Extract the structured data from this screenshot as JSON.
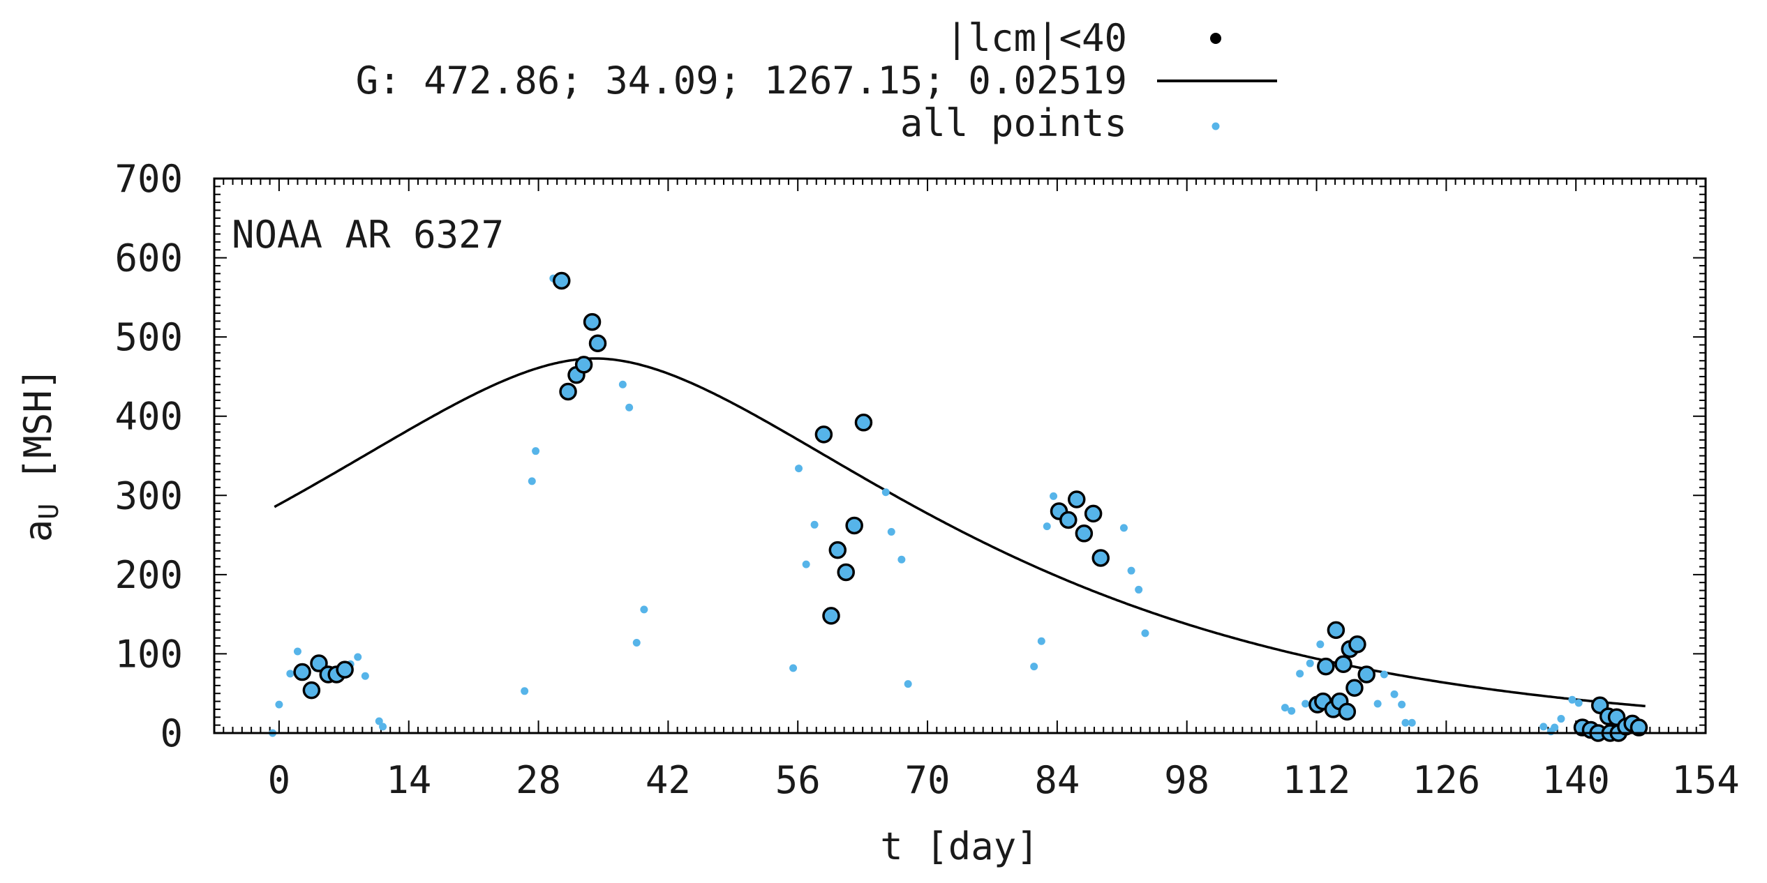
{
  "chart_data": {
    "type": "scatter",
    "annotation": "NOAA AR 6327",
    "xlabel": "t [day]",
    "ylabel": "a",
    "ylabel_sub": "U",
    "ylabel_unit": "[MSH]",
    "xlim": [
      -7,
      154
    ],
    "ylim": [
      0,
      700
    ],
    "xticks": [
      0,
      14,
      28,
      42,
      56,
      70,
      84,
      98,
      112,
      126,
      140,
      154
    ],
    "yticks": [
      0,
      100,
      200,
      300,
      400,
      500,
      600,
      700
    ],
    "grid": false,
    "legend_position": "top",
    "legend": [
      {
        "label": "|lcm|<40",
        "marker": "circle"
      },
      {
        "label": "G: 472.86; 34.09; 1267.15; 0.02519",
        "marker": "line"
      },
      {
        "label": "all points",
        "marker": "dot"
      }
    ],
    "colors": {
      "points": "#56b4e9",
      "outline": "#000000",
      "fit": "#000000"
    },
    "fit_curve": {
      "amplitude": 472.86,
      "t_peak": 34.09,
      "c1": 1267.15,
      "c2": 0.02519
    },
    "series_all": [
      [
        -0.7,
        0
      ],
      [
        0,
        36
      ],
      [
        1.2,
        75
      ],
      [
        2,
        103
      ],
      [
        4,
        82
      ],
      [
        7.7,
        87
      ],
      [
        8.5,
        96
      ],
      [
        9.3,
        72
      ],
      [
        10.8,
        15
      ],
      [
        11.2,
        8
      ],
      [
        26.5,
        53
      ],
      [
        27.3,
        318
      ],
      [
        27.7,
        356
      ],
      [
        29.6,
        574
      ],
      [
        37.1,
        440
      ],
      [
        37.8,
        411
      ],
      [
        38.6,
        114
      ],
      [
        39.4,
        156
      ],
      [
        55.5,
        82
      ],
      [
        56.1,
        334
      ],
      [
        56.9,
        213
      ],
      [
        57.8,
        263
      ],
      [
        65.5,
        304
      ],
      [
        66.1,
        254
      ],
      [
        67.2,
        219
      ],
      [
        67.9,
        62
      ],
      [
        81.5,
        84
      ],
      [
        82.3,
        116
      ],
      [
        82.9,
        261
      ],
      [
        83.6,
        299
      ],
      [
        91.2,
        259
      ],
      [
        92,
        205
      ],
      [
        92.8,
        181
      ],
      [
        93.5,
        126
      ],
      [
        108.6,
        32
      ],
      [
        109.3,
        28
      ],
      [
        110.2,
        75
      ],
      [
        110.8,
        37
      ],
      [
        111.3,
        88
      ],
      [
        112.4,
        112
      ],
      [
        118.6,
        37
      ],
      [
        119.3,
        74
      ],
      [
        120.4,
        49
      ],
      [
        121.2,
        36
      ],
      [
        121.6,
        13
      ],
      [
        122.3,
        13
      ],
      [
        136.5,
        8
      ],
      [
        137.3,
        2
      ],
      [
        137.7,
        7
      ],
      [
        138.4,
        18
      ],
      [
        139.6,
        42
      ],
      [
        140.3,
        38
      ],
      [
        146.4,
        6
      ],
      [
        147.2,
        4
      ]
    ],
    "series_lcm": [
      [
        2.5,
        77
      ],
      [
        3.5,
        54
      ],
      [
        4.3,
        88
      ],
      [
        5.3,
        74
      ],
      [
        6.2,
        74
      ],
      [
        7.1,
        80
      ],
      [
        30.5,
        571
      ],
      [
        31.2,
        431
      ],
      [
        32.1,
        452
      ],
      [
        32.9,
        465
      ],
      [
        33.8,
        519
      ],
      [
        34.4,
        492
      ],
      [
        58.8,
        377
      ],
      [
        59.6,
        148
      ],
      [
        60.3,
        231
      ],
      [
        61.2,
        203
      ],
      [
        62.1,
        262
      ],
      [
        63.1,
        392
      ],
      [
        84.2,
        280
      ],
      [
        85.2,
        269
      ],
      [
        86.1,
        295
      ],
      [
        86.9,
        252
      ],
      [
        87.9,
        277
      ],
      [
        88.7,
        221
      ],
      [
        112.1,
        36
      ],
      [
        112.7,
        40
      ],
      [
        113,
        84
      ],
      [
        113.8,
        30
      ],
      [
        114.1,
        130
      ],
      [
        114.5,
        40
      ],
      [
        114.9,
        87
      ],
      [
        115.3,
        27
      ],
      [
        115.6,
        106
      ],
      [
        116.1,
        57
      ],
      [
        116.4,
        112
      ],
      [
        117.4,
        74
      ],
      [
        140.7,
        7
      ],
      [
        141.6,
        4
      ],
      [
        142.4,
        0
      ],
      [
        142.6,
        35
      ],
      [
        143.5,
        21
      ],
      [
        143.7,
        0
      ],
      [
        144.4,
        20
      ],
      [
        144.6,
        0
      ],
      [
        145.4,
        8
      ],
      [
        146.1,
        12
      ],
      [
        146.8,
        7
      ]
    ]
  }
}
